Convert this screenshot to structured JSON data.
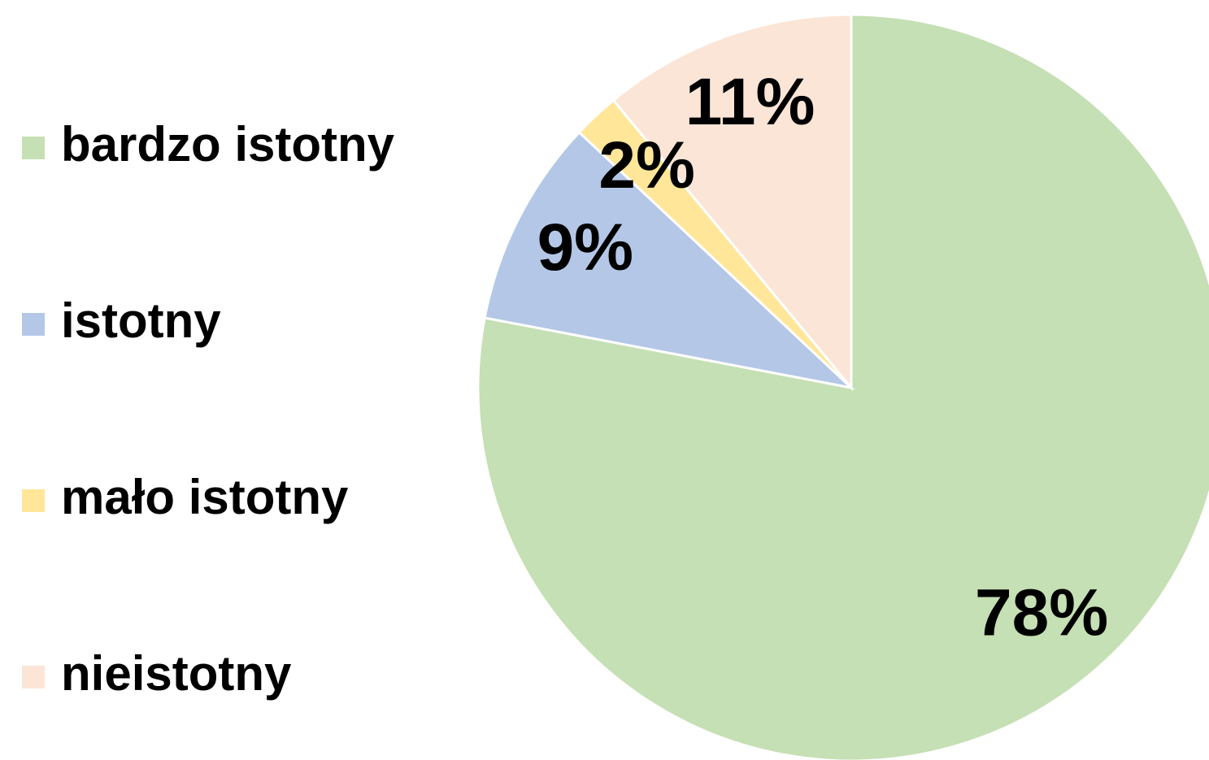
{
  "chart_data": {
    "type": "pie",
    "categories": [
      "bardzo istotny",
      "istotny",
      "mało istotny",
      "nieistotny"
    ],
    "values": [
      78,
      9,
      2,
      11
    ],
    "value_labels": [
      "78%",
      "9%",
      "2%",
      "11%"
    ],
    "colors": [
      "#c5e0b4",
      "#b4c7e7",
      "#ffe699",
      "#fbe5d6"
    ],
    "legend": "left"
  }
}
